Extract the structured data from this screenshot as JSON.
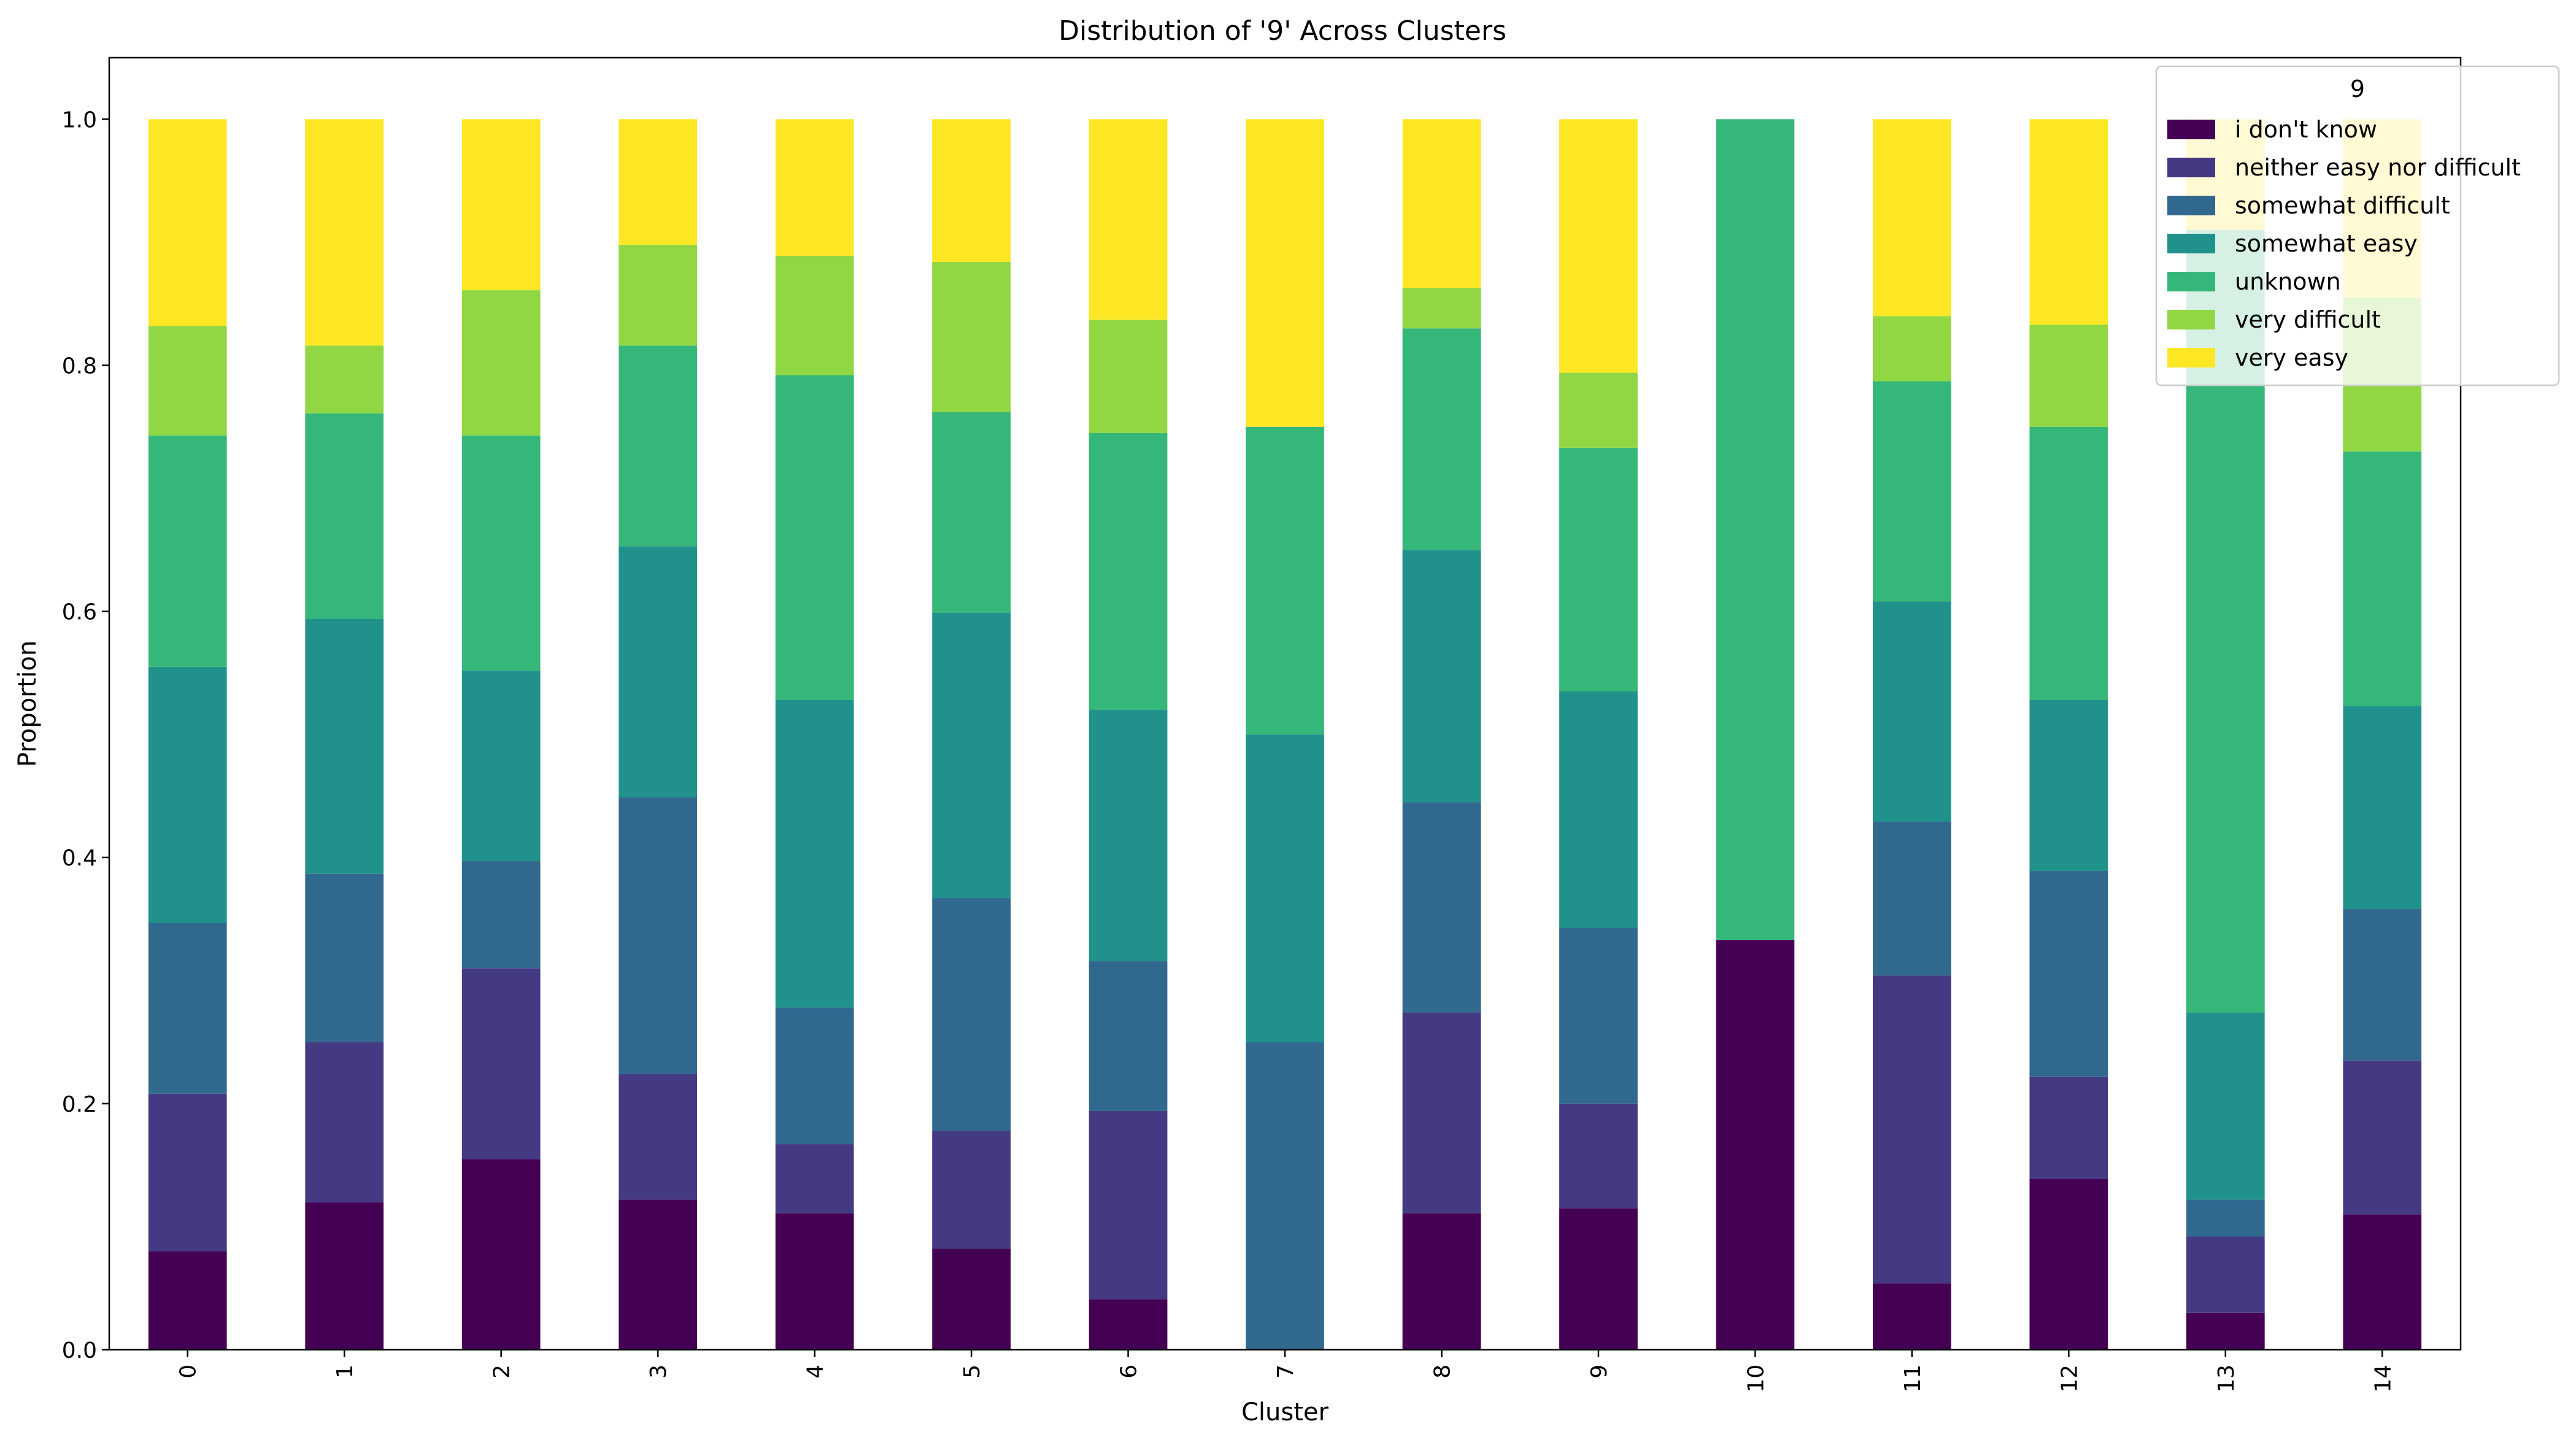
{
  "chart_data": {
    "type": "bar",
    "stacked": true,
    "title": "Distribution of '9' Across Clusters",
    "xlabel": "Cluster",
    "ylabel": "Proportion",
    "ylim": [
      0,
      1.05
    ],
    "yticks": [
      "0.0",
      "0.2",
      "0.4",
      "0.6",
      "0.8",
      "1.0"
    ],
    "grid": false,
    "legend_title": "9",
    "legend_position": "top-right",
    "categories": [
      "0",
      "1",
      "2",
      "3",
      "4",
      "5",
      "6",
      "7",
      "8",
      "9",
      "10",
      "11",
      "12",
      "13",
      "14"
    ],
    "series": [
      {
        "name": "i don't know",
        "color": "#440154",
        "values": [
          0.08,
          0.12,
          0.155,
          0.122,
          0.111,
          0.082,
          0.041,
          0.0,
          0.111,
          0.115,
          0.333,
          0.054,
          0.139,
          0.03,
          0.11
        ]
      },
      {
        "name": "neither easy nor difficult",
        "color": "#443983",
        "values": [
          0.128,
          0.13,
          0.155,
          0.102,
          0.056,
          0.096,
          0.153,
          0.0,
          0.163,
          0.085,
          0.0,
          0.25,
          0.083,
          0.062,
          0.125
        ]
      },
      {
        "name": "somewhat difficult",
        "color": "#31688e",
        "values": [
          0.139,
          0.137,
          0.087,
          0.225,
          0.111,
          0.189,
          0.122,
          0.25,
          0.171,
          0.143,
          0.0,
          0.125,
          0.167,
          0.03,
          0.123
        ]
      },
      {
        "name": "somewhat easy",
        "color": "#21918c",
        "values": [
          0.208,
          0.207,
          0.155,
          0.204,
          0.25,
          0.232,
          0.204,
          0.25,
          0.205,
          0.192,
          0.0,
          0.179,
          0.139,
          0.152,
          0.165
        ]
      },
      {
        "name": "unknown",
        "color": "#35b779",
        "values": [
          0.188,
          0.167,
          0.191,
          0.163,
          0.264,
          0.163,
          0.225,
          0.25,
          0.18,
          0.198,
          0.667,
          0.179,
          0.222,
          0.636,
          0.207
        ]
      },
      {
        "name": "very difficult",
        "color": "#90d743",
        "values": [
          0.089,
          0.055,
          0.118,
          0.082,
          0.097,
          0.122,
          0.092,
          0.0,
          0.033,
          0.061,
          0.0,
          0.053,
          0.083,
          0.0,
          0.125
        ]
      },
      {
        "name": "very easy",
        "color": "#fde725",
        "values": [
          0.168,
          0.184,
          0.139,
          0.102,
          0.111,
          0.116,
          0.163,
          0.25,
          0.137,
          0.206,
          0.0,
          0.16,
          0.167,
          0.09,
          0.145
        ]
      }
    ]
  }
}
